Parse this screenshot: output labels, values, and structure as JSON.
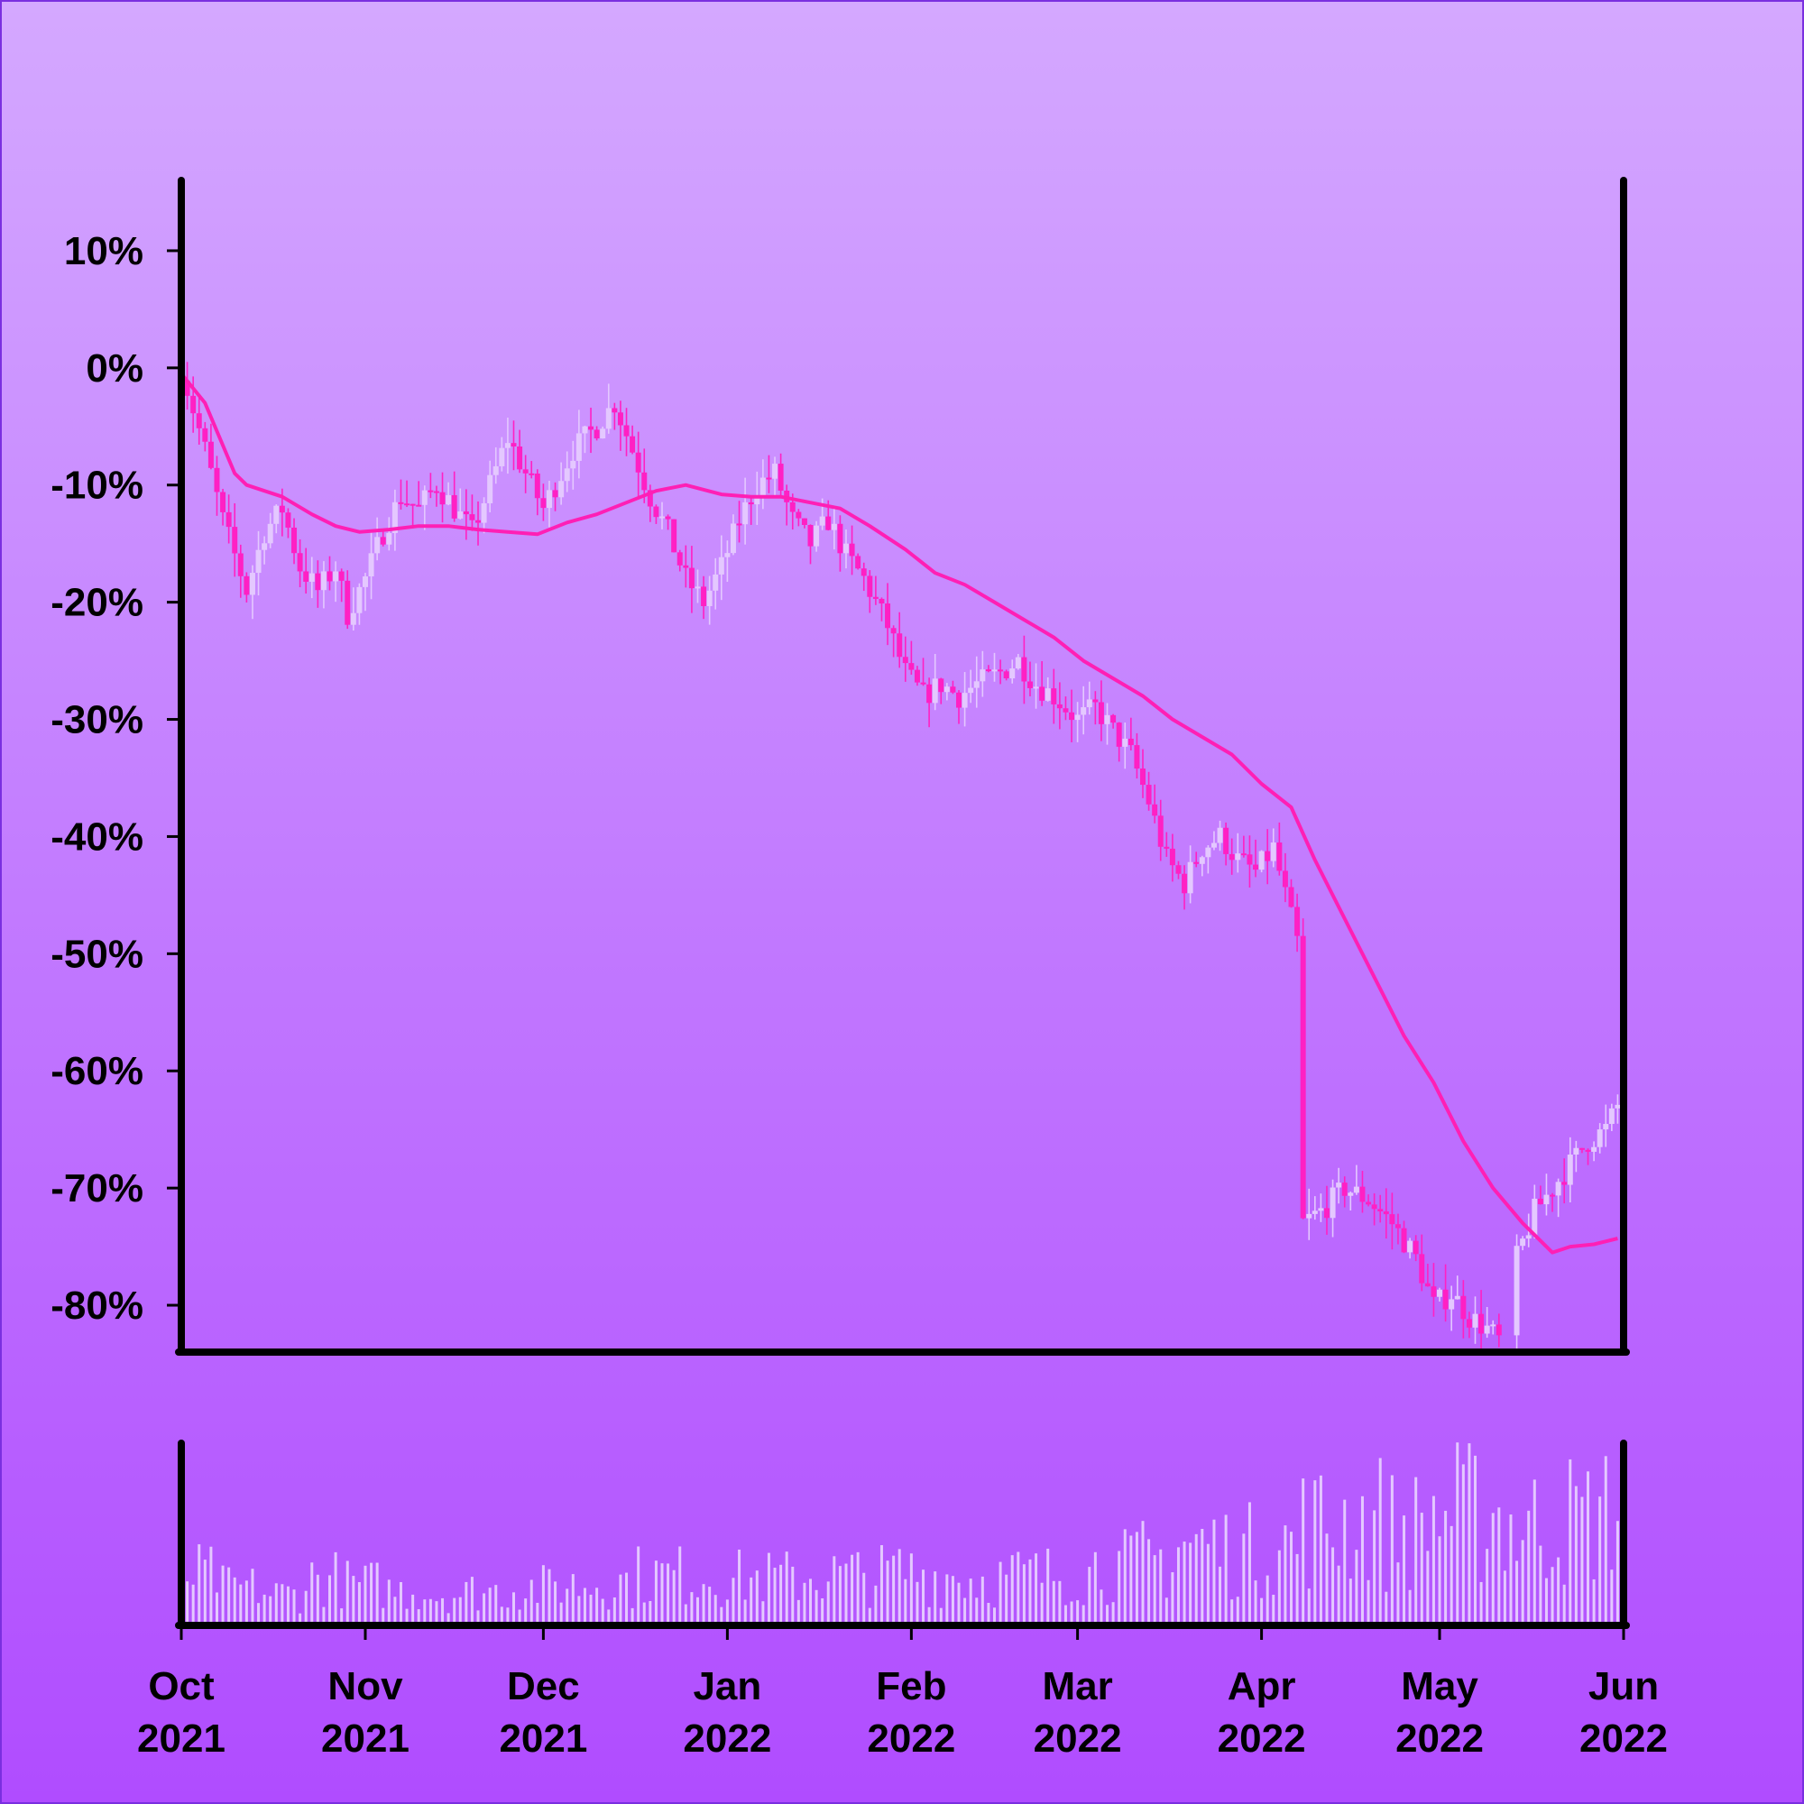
{
  "chart_data": {
    "type": "candlestick",
    "title": "",
    "xlabel": "",
    "ylabel": "",
    "y_unit": "%",
    "ylim": [
      -84,
      16
    ],
    "y_ticks": [
      10,
      0,
      -10,
      -20,
      -30,
      -40,
      -50,
      -60,
      -70,
      -80
    ],
    "y_tick_labels": [
      "10%",
      "0%",
      "-10%",
      "-20%",
      "-30%",
      "-40%",
      "-50%",
      "-60%",
      "-70%",
      "-80%"
    ],
    "x_range": [
      "2021-10-01",
      "2022-06-01"
    ],
    "x_ticks": [
      "2021-10-01",
      "2021-11-01",
      "2021-12-01",
      "2022-01-01",
      "2022-02-01",
      "2022-03-01",
      "2022-04-01",
      "2022-05-01",
      "2022-06-01"
    ],
    "x_tick_labels": [
      [
        "Oct",
        "2021"
      ],
      [
        "Nov",
        "2021"
      ],
      [
        "Dec",
        "2021"
      ],
      [
        "Jan",
        "2022"
      ],
      [
        "Feb",
        "2022"
      ],
      [
        "Mar",
        "2022"
      ],
      [
        "Apr",
        "2022"
      ],
      [
        "May",
        "2022"
      ],
      [
        "Jun",
        "2022"
      ]
    ],
    "close_path": [
      [
        "2021-10-01",
        0
      ],
      [
        "2021-10-05",
        -7
      ],
      [
        "2021-10-08",
        -13
      ],
      [
        "2021-10-12",
        -19
      ],
      [
        "2021-10-15",
        -14
      ],
      [
        "2021-10-18",
        -12
      ],
      [
        "2021-10-21",
        -17
      ],
      [
        "2021-10-24",
        -19
      ],
      [
        "2021-10-27",
        -17
      ],
      [
        "2021-10-29",
        -21
      ],
      [
        "2021-11-01",
        -18
      ],
      [
        "2021-11-04",
        -14
      ],
      [
        "2021-11-07",
        -11
      ],
      [
        "2021-11-10",
        -12
      ],
      [
        "2021-11-13",
        -10
      ],
      [
        "2021-11-16",
        -12
      ],
      [
        "2021-11-19",
        -14
      ],
      [
        "2021-11-22",
        -10
      ],
      [
        "2021-11-25",
        -6
      ],
      [
        "2021-11-28",
        -9
      ],
      [
        "2021-12-01",
        -12
      ],
      [
        "2021-12-03",
        -10
      ],
      [
        "2021-12-06",
        -7
      ],
      [
        "2021-12-10",
        -5
      ],
      [
        "2021-12-13",
        -3
      ],
      [
        "2021-12-16",
        -7
      ],
      [
        "2021-12-19",
        -11
      ],
      [
        "2021-12-22",
        -14
      ],
      [
        "2021-12-25",
        -18
      ],
      [
        "2021-12-28",
        -20
      ],
      [
        "2021-12-31",
        -17
      ],
      [
        "2022-01-03",
        -13
      ],
      [
        "2022-01-06",
        -10
      ],
      [
        "2022-01-09",
        -9
      ],
      [
        "2022-01-12",
        -13
      ],
      [
        "2022-01-15",
        -15
      ],
      [
        "2022-01-18",
        -13
      ],
      [
        "2022-01-21",
        -16
      ],
      [
        "2022-01-24",
        -18
      ],
      [
        "2022-01-28",
        -22
      ],
      [
        "2022-01-31",
        -26
      ],
      [
        "2022-02-03",
        -28
      ],
      [
        "2022-02-06",
        -27
      ],
      [
        "2022-02-09",
        -28
      ],
      [
        "2022-02-12",
        -27
      ],
      [
        "2022-02-16",
        -26
      ],
      [
        "2022-02-19",
        -25
      ],
      [
        "2022-02-22",
        -27
      ],
      [
        "2022-02-25",
        -28
      ],
      [
        "2022-03-01",
        -30
      ],
      [
        "2022-03-04",
        -29
      ],
      [
        "2022-03-07",
        -31
      ],
      [
        "2022-03-10",
        -33
      ],
      [
        "2022-03-13",
        -37
      ],
      [
        "2022-03-16",
        -42
      ],
      [
        "2022-03-19",
        -44
      ],
      [
        "2022-03-22",
        -41
      ],
      [
        "2022-03-25",
        -40
      ],
      [
        "2022-03-28",
        -42
      ],
      [
        "2022-03-31",
        -43
      ],
      [
        "2022-04-03",
        -41
      ],
      [
        "2022-04-05",
        -45
      ],
      [
        "2022-04-07",
        -49
      ],
      [
        "2022-04-08",
        -73
      ],
      [
        "2022-04-11",
        -72
      ],
      [
        "2022-04-15",
        -70
      ],
      [
        "2022-04-19",
        -71
      ],
      [
        "2022-04-23",
        -73
      ],
      [
        "2022-04-27",
        -76
      ],
      [
        "2022-04-30",
        -80
      ],
      [
        "2022-05-03",
        -79
      ],
      [
        "2022-05-06",
        -81
      ],
      [
        "2022-05-09",
        -82
      ],
      [
        "2022-05-11",
        -83
      ],
      [
        "2022-05-14",
        -76
      ],
      [
        "2022-05-17",
        -72
      ],
      [
        "2022-05-20",
        -70
      ],
      [
        "2022-05-23",
        -68
      ],
      [
        "2022-05-26",
        -66
      ],
      [
        "2022-05-29",
        -65
      ],
      [
        "2022-06-01",
        -62
      ]
    ],
    "moving_average": [
      [
        "2021-10-01",
        -0.5
      ],
      [
        "2021-10-05",
        -3
      ],
      [
        "2021-10-10",
        -9
      ],
      [
        "2021-10-12",
        -10
      ],
      [
        "2021-10-18",
        -11
      ],
      [
        "2021-10-23",
        -12.5
      ],
      [
        "2021-10-27",
        -13.5
      ],
      [
        "2021-10-31",
        -14
      ],
      [
        "2021-11-05",
        -13.8
      ],
      [
        "2021-11-10",
        -13.5
      ],
      [
        "2021-11-15",
        -13.5
      ],
      [
        "2021-11-20",
        -13.8
      ],
      [
        "2021-11-25",
        -14
      ],
      [
        "2021-11-30",
        -14.2
      ],
      [
        "2021-12-05",
        -13.2
      ],
      [
        "2021-12-10",
        -12.5
      ],
      [
        "2021-12-15",
        -11.5
      ],
      [
        "2021-12-20",
        -10.5
      ],
      [
        "2021-12-25",
        -10
      ],
      [
        "2021-12-31",
        -10.8
      ],
      [
        "2022-01-05",
        -11
      ],
      [
        "2022-01-10",
        -11
      ],
      [
        "2022-01-15",
        -11.5
      ],
      [
        "2022-01-20",
        -12
      ],
      [
        "2022-01-25",
        -13.5
      ],
      [
        "2022-01-31",
        -15.5
      ],
      [
        "2022-02-05",
        -17.5
      ],
      [
        "2022-02-10",
        -18.5
      ],
      [
        "2022-02-15",
        -20
      ],
      [
        "2022-02-20",
        -21.5
      ],
      [
        "2022-02-25",
        -23
      ],
      [
        "2022-03-02",
        -25
      ],
      [
        "2022-03-07",
        -26.5
      ],
      [
        "2022-03-12",
        -28
      ],
      [
        "2022-03-17",
        -30
      ],
      [
        "2022-03-22",
        -31.5
      ],
      [
        "2022-03-27",
        -33
      ],
      [
        "2022-04-01",
        -35.5
      ],
      [
        "2022-04-06",
        -37.5
      ],
      [
        "2022-04-10",
        -42
      ],
      [
        "2022-04-15",
        -47
      ],
      [
        "2022-04-20",
        -52
      ],
      [
        "2022-04-25",
        -57
      ],
      [
        "2022-04-30",
        -61
      ],
      [
        "2022-05-05",
        -66
      ],
      [
        "2022-05-10",
        -70
      ],
      [
        "2022-05-15",
        -73
      ],
      [
        "2022-05-20",
        -75.5
      ],
      [
        "2022-05-23",
        -75
      ],
      [
        "2022-05-27",
        -74.8
      ],
      [
        "2022-05-31",
        -74.3
      ]
    ],
    "volume_ylim": [
      0,
      100
    ],
    "volume_weeks": [
      [
        "2021-10-01",
        30
      ],
      [
        "2021-10-08",
        22
      ],
      [
        "2021-10-15",
        18
      ],
      [
        "2021-10-22",
        28
      ],
      [
        "2021-10-29",
        24
      ],
      [
        "2021-11-05",
        20
      ],
      [
        "2021-11-12",
        18
      ],
      [
        "2021-11-19",
        20
      ],
      [
        "2021-11-26",
        22
      ],
      [
        "2021-12-03",
        24
      ],
      [
        "2021-12-10",
        26
      ],
      [
        "2021-12-17",
        30
      ],
      [
        "2021-12-24",
        30
      ],
      [
        "2021-12-31",
        28
      ],
      [
        "2022-01-07",
        28
      ],
      [
        "2022-01-14",
        30
      ],
      [
        "2022-01-21",
        30
      ],
      [
        "2022-01-28",
        32
      ],
      [
        "2022-02-04",
        30
      ],
      [
        "2022-02-11",
        28
      ],
      [
        "2022-02-18",
        30
      ],
      [
        "2022-02-25",
        32
      ],
      [
        "2022-03-04",
        36
      ],
      [
        "2022-03-11",
        40
      ],
      [
        "2022-03-18",
        50
      ],
      [
        "2022-03-25",
        46
      ],
      [
        "2022-04-01",
        50
      ],
      [
        "2022-04-08",
        62
      ],
      [
        "2022-04-15",
        66
      ],
      [
        "2022-04-22",
        60
      ],
      [
        "2022-04-29",
        70
      ],
      [
        "2022-05-06",
        70
      ],
      [
        "2022-05-13",
        62
      ],
      [
        "2022-05-20",
        66
      ],
      [
        "2022-05-27",
        70
      ]
    ],
    "colors": {
      "up": "#e4c8ff",
      "down": "#ff20c4",
      "moving_average": "#ff1fb5",
      "volume": "#e4c8ff",
      "axis": "#000000",
      "background_top": "#d4a8ff",
      "background_bottom": "#b04cff"
    },
    "grid": false,
    "legend": "none"
  }
}
